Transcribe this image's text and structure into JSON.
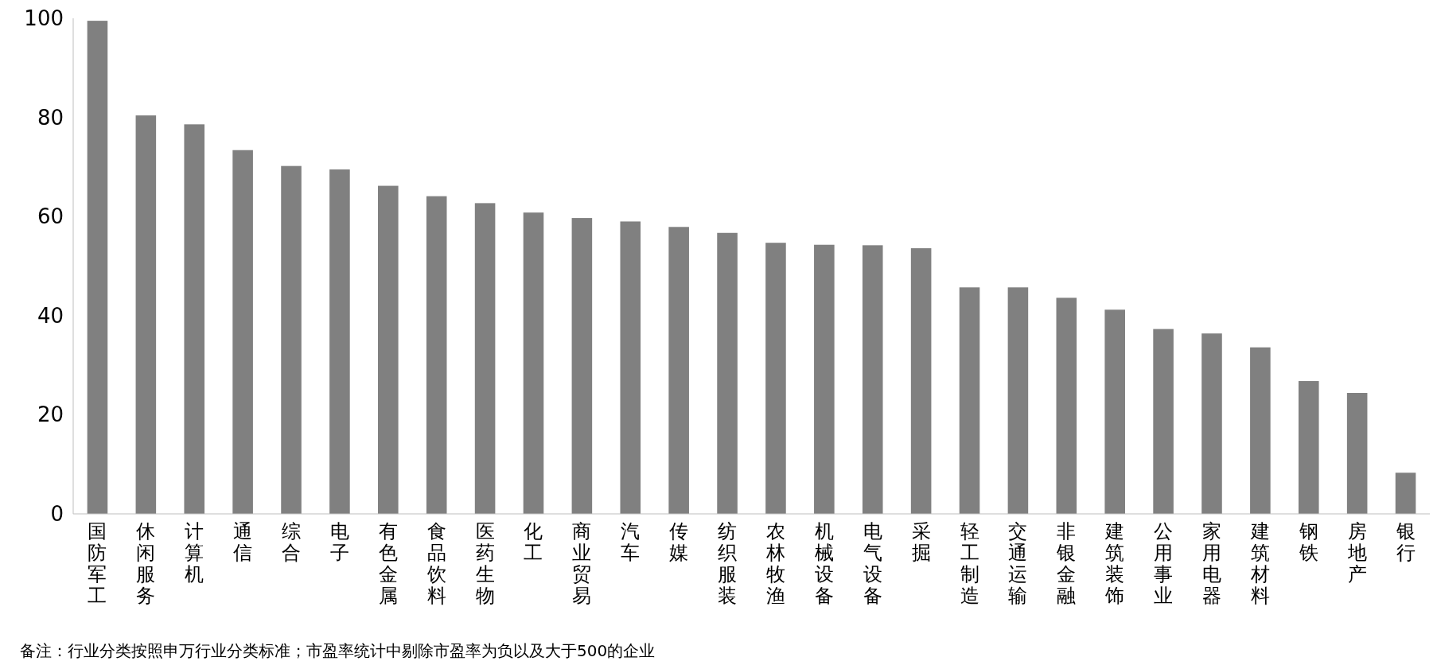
{
  "chart_data": {
    "type": "bar",
    "categories": [
      "国防军工",
      "休闲服务",
      "计算机",
      "通信",
      "综合",
      "电子",
      "有色金属",
      "食品饮料",
      "医药生物",
      "化工",
      "商业贸易",
      "汽车",
      "传媒",
      "纺织服装",
      "农林牧渔",
      "机械设备",
      "电气设备",
      "采掘",
      "轻工制造",
      "交通运输",
      "非银金融",
      "建筑装饰",
      "公用事业",
      "家用电器",
      "建筑材料",
      "钢铁",
      "房地产",
      "银行"
    ],
    "values": [
      99.5,
      80.4,
      78.6,
      73.4,
      70.2,
      69.5,
      66.2,
      64.1,
      62.7,
      60.8,
      59.7,
      59.0,
      57.9,
      56.7,
      54.7,
      54.3,
      54.2,
      53.6,
      45.7,
      45.7,
      43.6,
      41.2,
      37.3,
      36.4,
      33.6,
      26.8,
      24.4,
      8.3
    ],
    "color": "#808080",
    "ylim": [
      0,
      100
    ],
    "yticks": [
      0,
      20,
      40,
      60,
      80,
      100
    ],
    "grid": false,
    "annotations": [
      "备注：行业分类按照申万行业分类标准；市盈率统计中剔除市盈率为负以及大于500的企业"
    ]
  }
}
